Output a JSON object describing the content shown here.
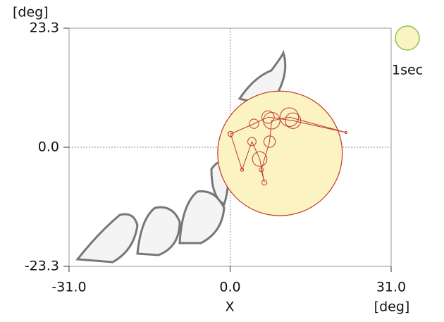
{
  "chart_data": {
    "type": "line",
    "x_label": "X",
    "x_unit": "[deg]",
    "y_unit": "[deg]",
    "xlim": [
      -31,
      31
    ],
    "ylim": [
      -23.3,
      23.3
    ],
    "xticks": [
      {
        "value": -31,
        "label": "-31.0"
      },
      {
        "value": 0,
        "label": "0.0"
      },
      {
        "value": 31,
        "label": "31.0"
      }
    ],
    "yticks": [
      {
        "value": -23.3,
        "label": "-23.3"
      },
      {
        "value": 0,
        "label": "0.0"
      },
      {
        "value": 23.3,
        "label": "23.3"
      }
    ],
    "zero_lines": true,
    "highlight": {
      "name": "1sec",
      "x": 9.6,
      "y": -1.2,
      "r": 12,
      "color": "#fbf3c2",
      "edge": "#c0392b"
    },
    "series": [
      {
        "color": "#c0392b",
        "x": [
          0.1,
          2.3,
          4.2,
          5.7,
          6.6,
          6.0,
          7.6,
          8.0,
          11.4,
          22.3,
          12.1,
          7.3,
          4.6,
          0.1
        ],
        "y": [
          2.6,
          -4.4,
          1.1,
          -2.3,
          -6.9,
          -4.4,
          1.1,
          5.2,
          5.9,
          2.9,
          5.2,
          5.9,
          4.6,
          2.6
        ],
        "radius": [
          0.5,
          0.3,
          0.8,
          1.4,
          0.5,
          0.4,
          1.1,
          1.6,
          1.8,
          0.2,
          1.5,
          1.2,
          0.9,
          0.5
        ]
      }
    ]
  }
}
